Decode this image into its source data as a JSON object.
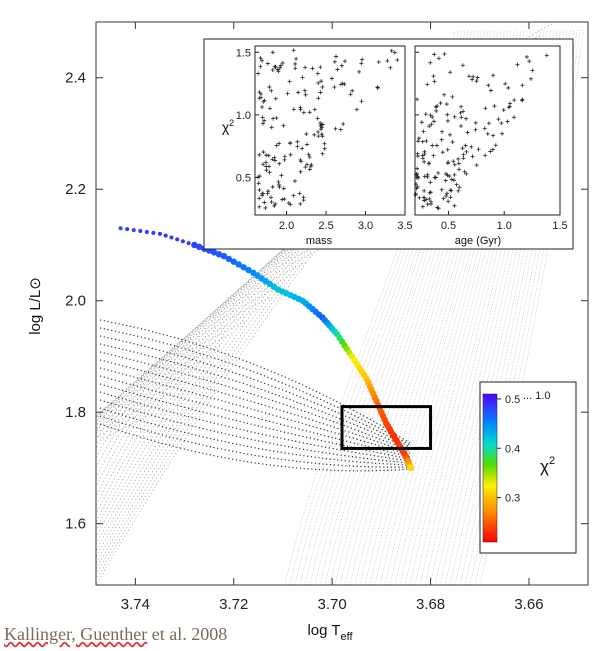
{
  "chart_data": [
    {
      "type": "scatter",
      "title": "",
      "xlabel_main": "log T",
      "xlabel_sub": "eff",
      "ylabel": "log L/L⊙",
      "xlim": [
        3.748,
        3.648
      ],
      "ylim": [
        1.49,
        2.5
      ],
      "x_reversed": true,
      "xticks": [
        "3.74",
        "3.72",
        "3.70",
        "3.68",
        "3.66"
      ],
      "yticks": [
        "1.6",
        "1.8",
        "2.0",
        "2.2",
        "2.4"
      ],
      "grid": false,
      "track": {
        "x": [
          3.743,
          3.735,
          3.728,
          3.722,
          3.716,
          3.711,
          3.706,
          3.702,
          3.699,
          3.696,
          3.693,
          3.691,
          3.689,
          3.687,
          3.685,
          3.684
        ],
        "y": [
          2.13,
          2.12,
          2.1,
          2.08,
          2.05,
          2.02,
          2.0,
          1.97,
          1.94,
          1.9,
          1.86,
          1.82,
          1.78,
          1.75,
          1.72,
          1.7
        ],
        "chi2": [
          0.48,
          0.49,
          0.48,
          0.47,
          0.45,
          0.42,
          0.43,
          0.47,
          0.4,
          0.33,
          0.3,
          0.26,
          0.24,
          0.23,
          0.24,
          0.31
        ]
      },
      "error_box": {
        "x": [
          3.698,
          3.68
        ],
        "y": [
          1.735,
          1.81
        ]
      },
      "colorbar": {
        "label": "χ",
        "label_sup": "2",
        "ticks": [
          "0.5",
          "0.4",
          "0.3"
        ],
        "top_note": "... 1.0",
        "range": [
          0.21,
          0.51
        ]
      }
    },
    {
      "type": "scatter",
      "title": "",
      "xlabel": "mass",
      "ylabel": "χ",
      "ylabel_sup": "2",
      "xlim": [
        1.6,
        3.5
      ],
      "ylim": [
        0.2,
        1.55
      ],
      "xticks": [
        "2.0",
        "2.5",
        "3.0",
        "3.5"
      ],
      "yticks": [
        "1.5",
        "1.0",
        "0.5"
      ],
      "marker": "+"
    },
    {
      "type": "scatter",
      "title": "",
      "xlabel": "age (Gyr)",
      "xlim": [
        0.2,
        1.5
      ],
      "ylim": [
        0.2,
        1.55
      ],
      "xticks": [
        "0.5",
        "1.0",
        "1.5"
      ],
      "marker": "+"
    }
  ],
  "credit": {
    "authors": "Kallinger, Guenther",
    "rest": " et al. 2008"
  }
}
